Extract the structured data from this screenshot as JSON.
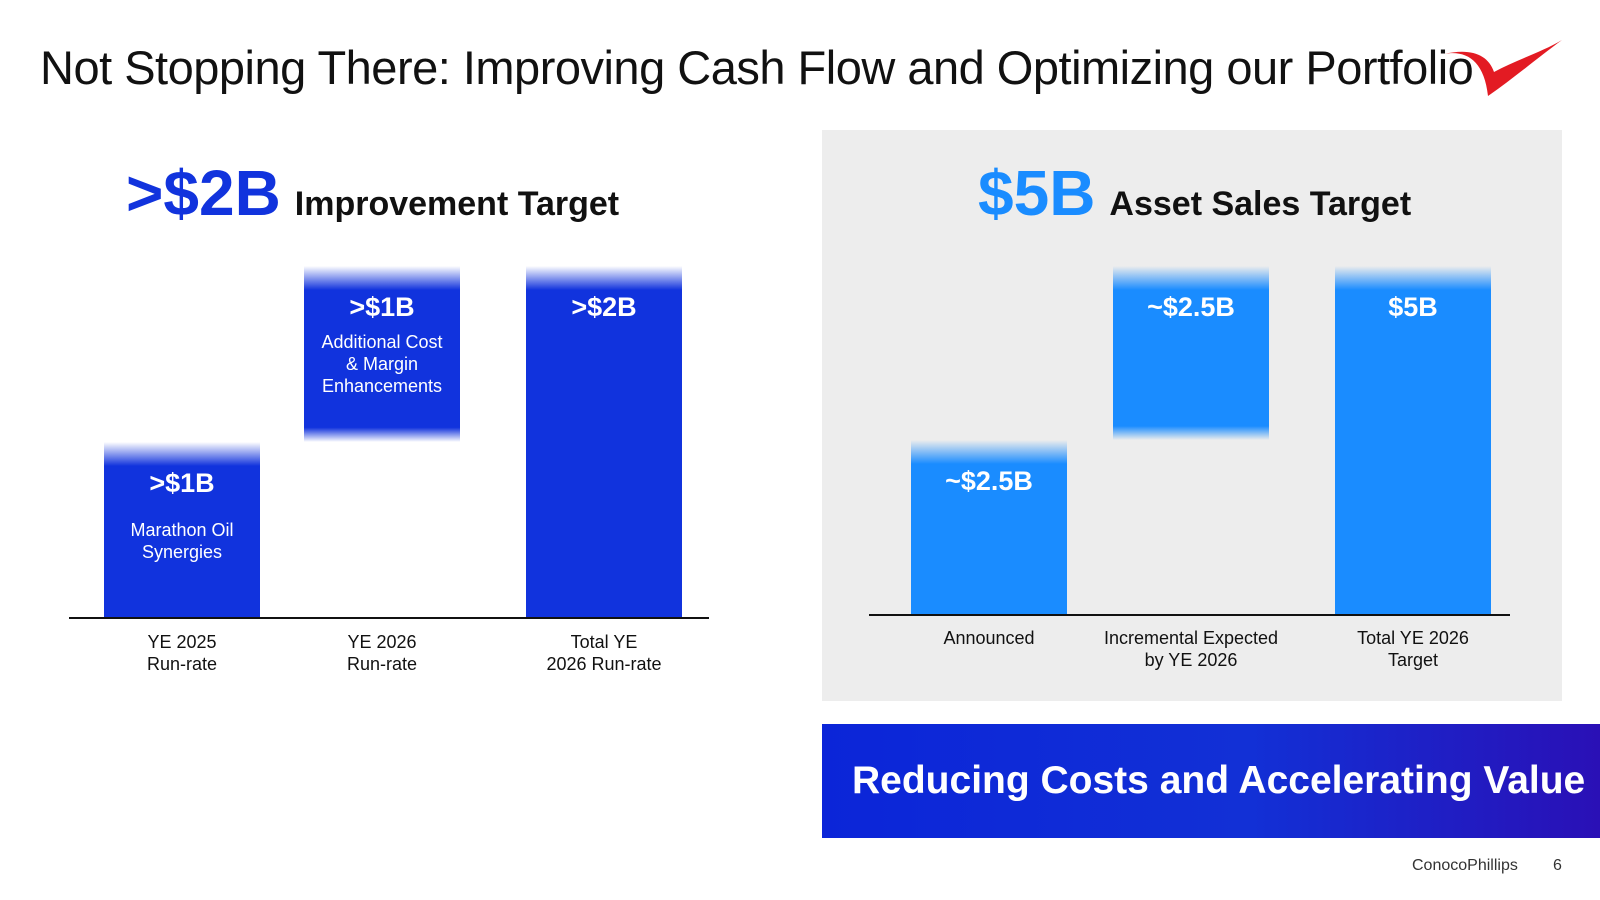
{
  "slide": {
    "title": "Not Stopping There: Improving Cash Flow and Optimizing our Portfolio",
    "company": "ConocoPhillips",
    "page_number": "6",
    "banner": "Reducing Costs and Accelerating Value",
    "colors": {
      "navy_blue": "#1133dd",
      "light_blue": "#1a8cff",
      "panel_gray": "#ededed",
      "logo_red": "#e31b23"
    }
  },
  "chart_data": [
    {
      "type": "bar",
      "subtype": "waterfall",
      "heading_value": ">$2B",
      "heading_label": "Improvement Target",
      "categories": [
        "YE 2025 Run-rate",
        "YE 2026 Run-rate",
        "Total YE 2026 Run-rate"
      ],
      "tick_labels": [
        [
          "YE 2025",
          "Run-rate"
        ],
        [
          "YE 2026",
          "Run-rate"
        ],
        [
          "Total YE",
          "2026 Run-rate"
        ]
      ],
      "values": [
        1,
        1,
        2
      ],
      "bases": [
        0,
        1,
        0
      ],
      "data_labels": [
        ">$1B",
        ">$1B",
        ">$2B"
      ],
      "bar_descriptions": [
        [
          "Marathon Oil",
          "Synergies"
        ],
        [
          "Additional Cost",
          "& Margin",
          "Enhancements"
        ],
        []
      ],
      "unit": "$B",
      "color": "#1133dd",
      "grid": false
    },
    {
      "type": "bar",
      "subtype": "waterfall",
      "heading_value": "$5B",
      "heading_label": "Asset Sales Target",
      "categories": [
        "Announced",
        "Incremental Expected by YE 2026",
        "Total YE 2026 Target"
      ],
      "tick_labels": [
        [
          "Announced"
        ],
        [
          "Incremental Expected",
          "by YE 2026"
        ],
        [
          "Total YE 2026",
          "Target"
        ]
      ],
      "values": [
        2.5,
        2.5,
        5
      ],
      "bases": [
        0,
        2.5,
        0
      ],
      "data_labels": [
        "~$2.5B",
        "~$2.5B",
        "$5B"
      ],
      "bar_descriptions": [
        [],
        [],
        []
      ],
      "unit": "$B",
      "color": "#1a8cff",
      "grid": false
    }
  ]
}
